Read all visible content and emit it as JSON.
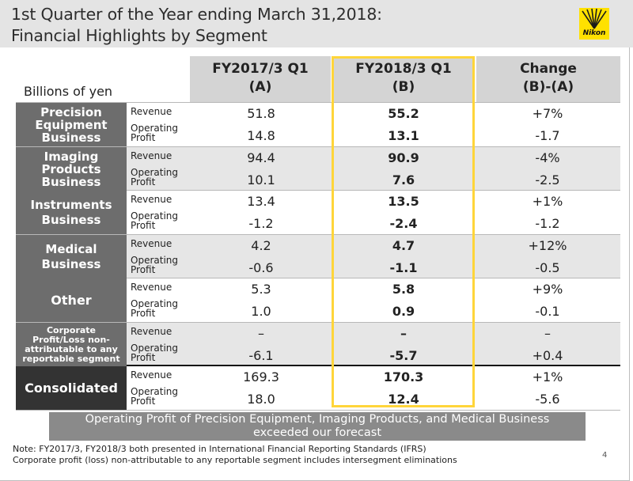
{
  "header": {
    "title_line1": "1st Quarter of the Year ending March 31,2018:",
    "title_line2": "Financial Highlights by Segment",
    "logo_text": "Nikon",
    "logo_color": "#ffe100"
  },
  "table": {
    "units": "Billions of yen",
    "columns": [
      {
        "line1": "FY2017/3 Q1",
        "line2": "(A)"
      },
      {
        "line1": "FY2018/3 Q1",
        "line2": "(B)"
      },
      {
        "line1": "Change",
        "line2": "(B)-(A)"
      }
    ],
    "row_labels": {
      "revenue": "Revenue",
      "op_line1": "Operating",
      "op_line2": "Profit"
    },
    "segments": [
      {
        "name_lines": [
          "Precision",
          "Equipment",
          "Business"
        ],
        "revenue": [
          "51.8",
          "55.2",
          "+7%"
        ],
        "operating_profit": [
          "14.8",
          "13.1",
          "-1.7"
        ]
      },
      {
        "name_lines": [
          "Imaging",
          "Products",
          "Business"
        ],
        "revenue": [
          "94.4",
          "90.9",
          "-4%"
        ],
        "operating_profit": [
          "10.1",
          "7.6",
          "-2.5"
        ]
      },
      {
        "name_lines": [
          "Instruments",
          "Business"
        ],
        "revenue": [
          "13.4",
          "13.5",
          "+1%"
        ],
        "operating_profit": [
          "-1.2",
          "-2.4",
          "-1.2"
        ]
      },
      {
        "name_lines": [
          "Medical",
          "Business"
        ],
        "revenue": [
          "4.2",
          "4.7",
          "+12%"
        ],
        "operating_profit": [
          "-0.6",
          "-1.1",
          "-0.5"
        ]
      },
      {
        "name_lines": [
          "Other"
        ],
        "revenue": [
          "5.3",
          "5.8",
          "+9%"
        ],
        "operating_profit": [
          "1.0",
          "0.9",
          "-0.1"
        ]
      },
      {
        "name_lines": [
          "Corporate",
          "Profit/Loss non-",
          "attributable to any",
          "reportable segment"
        ],
        "revenue": [
          "–",
          "–",
          "–"
        ],
        "operating_profit": [
          "-6.1",
          "-5.7",
          "+0.4"
        ]
      },
      {
        "name_lines": [
          "Consolidated"
        ],
        "revenue": [
          "169.3",
          "170.3",
          "+1%"
        ],
        "operating_profit": [
          "18.0",
          "12.4",
          "-5.6"
        ]
      }
    ],
    "highlight_color": "#ffd53a"
  },
  "banner": {
    "line1": "Operating Profit of Precision Equipment, Imaging Products, and Medical Business",
    "line2": "exceeded our forecast"
  },
  "notes": {
    "line1": "Note: FY2017/3, FY2018/3 both presented in International Financial Reporting Standards (IFRS)",
    "line2": "Corporate profit (loss) non-attributable to any reportable segment includes intersegment eliminations"
  },
  "page_number": "4"
}
